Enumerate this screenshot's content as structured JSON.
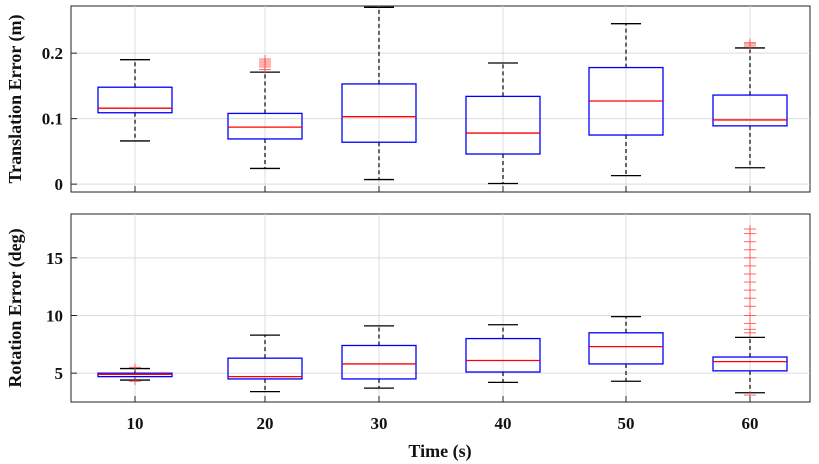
{
  "chart_data": {
    "type": "boxplot",
    "xlabel": "Time (s)",
    "categories": [
      "10",
      "20",
      "30",
      "40",
      "50",
      "60"
    ],
    "colors": {
      "box": "#0000ff",
      "median": "#ff0000",
      "whisker": "#000000",
      "outlier": "#ff4444",
      "grid": "#dcdcdc",
      "axis": "#222222"
    },
    "panels": [
      {
        "name": "translation",
        "ylabel": "Translation Error (m)",
        "ylim": [
          -0.012,
          0.272
        ],
        "yticks": [
          0,
          0.1,
          0.2
        ],
        "ytick_labels": [
          "0",
          "0.1",
          "0.2"
        ],
        "boxes": [
          {
            "category": "10",
            "whisker_low": 0.066,
            "q1": 0.109,
            "median": 0.116,
            "q3": 0.148,
            "whisker_high": 0.19,
            "outliers": []
          },
          {
            "category": "20",
            "whisker_low": 0.024,
            "q1": 0.069,
            "median": 0.087,
            "q3": 0.108,
            "whisker_high": 0.171,
            "outliers": [
              0.175,
              0.179,
              0.182,
              0.185,
              0.188,
              0.191
            ]
          },
          {
            "category": "30",
            "whisker_low": 0.007,
            "q1": 0.064,
            "median": 0.103,
            "q3": 0.153,
            "whisker_high": 0.27,
            "outliers": []
          },
          {
            "category": "40",
            "whisker_low": 0.001,
            "q1": 0.046,
            "median": 0.078,
            "q3": 0.134,
            "whisker_high": 0.185,
            "outliers": []
          },
          {
            "category": "50",
            "whisker_low": 0.013,
            "q1": 0.075,
            "median": 0.127,
            "q3": 0.178,
            "whisker_high": 0.245,
            "outliers": []
          },
          {
            "category": "60",
            "whisker_low": 0.025,
            "q1": 0.089,
            "median": 0.098,
            "q3": 0.136,
            "whisker_high": 0.208,
            "outliers": [
              0.211,
              0.214,
              0.216
            ]
          }
        ]
      },
      {
        "name": "rotation",
        "ylabel": "Rotation Error (deg)",
        "ylim": [
          2.5,
          18.8
        ],
        "yticks": [
          5,
          10,
          15
        ],
        "ytick_labels": [
          "5",
          "10",
          "15"
        ],
        "boxes": [
          {
            "category": "10",
            "whisker_low": 4.4,
            "q1": 4.7,
            "median": 4.9,
            "q3": 5.0,
            "whisker_high": 5.4,
            "outliers": [
              4.3,
              5.5
            ]
          },
          {
            "category": "20",
            "whisker_low": 3.4,
            "q1": 4.5,
            "median": 4.7,
            "q3": 6.3,
            "whisker_high": 8.3,
            "outliers": []
          },
          {
            "category": "30",
            "whisker_low": 3.7,
            "q1": 4.5,
            "median": 5.8,
            "q3": 7.4,
            "whisker_high": 9.1,
            "outliers": []
          },
          {
            "category": "40",
            "whisker_low": 4.2,
            "q1": 5.1,
            "median": 6.1,
            "q3": 8.0,
            "whisker_high": 9.2,
            "outliers": []
          },
          {
            "category": "50",
            "whisker_low": 4.3,
            "q1": 5.8,
            "median": 7.3,
            "q3": 8.5,
            "whisker_high": 9.9,
            "outliers": []
          },
          {
            "category": "60",
            "whisker_low": 3.3,
            "q1": 5.2,
            "median": 6.0,
            "q3": 6.4,
            "whisker_high": 8.1,
            "outliers": [
              3.1,
              8.5,
              8.8,
              9.3,
              10.0,
              10.8,
              11.5,
              12.2,
              12.9,
              13.6,
              14.3,
              15.0,
              15.7,
              16.4,
              17.1,
              17.5
            ]
          }
        ]
      }
    ]
  }
}
